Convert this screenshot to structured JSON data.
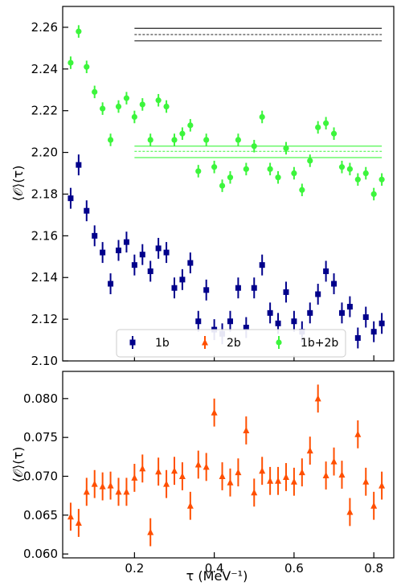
{
  "chart_data": [
    {
      "type": "scatter",
      "ylabel": "⟨𝒪⟩(τ)",
      "xlim": [
        0.02,
        0.85
      ],
      "ylim": [
        2.1,
        2.27
      ],
      "xticks": [
        0.2,
        0.4,
        0.6,
        0.8
      ],
      "yticks": [
        2.1,
        2.12,
        2.14,
        2.16,
        2.18,
        2.2,
        2.22,
        2.24,
        2.26
      ],
      "ytick_labels": [
        "2.10",
        "2.12",
        "2.14",
        "2.16",
        "2.18",
        "2.20",
        "2.22",
        "2.24",
        "2.26"
      ],
      "legend": {
        "placement": "bottom",
        "entries": [
          "1b",
          "2b",
          "1b+2b"
        ]
      },
      "series": [
        {
          "name": "1b",
          "color": "#00008b",
          "marker": "square",
          "x": [
            0.04,
            0.06,
            0.08,
            0.1,
            0.12,
            0.14,
            0.16,
            0.18,
            0.2,
            0.22,
            0.24,
            0.26,
            0.28,
            0.3,
            0.32,
            0.34,
            0.36,
            0.38,
            0.4,
            0.42,
            0.44,
            0.46,
            0.48,
            0.5,
            0.52,
            0.54,
            0.56,
            0.58,
            0.6,
            0.62,
            0.64,
            0.66,
            0.68,
            0.7,
            0.72,
            0.74,
            0.76,
            0.78,
            0.8,
            0.82
          ],
          "y": [
            2.178,
            2.194,
            2.172,
            2.16,
            2.152,
            2.137,
            2.153,
            2.157,
            2.146,
            2.151,
            2.143,
            2.154,
            2.152,
            2.135,
            2.139,
            2.147,
            2.119,
            2.134,
            2.115,
            2.113,
            2.119,
            2.135,
            2.116,
            2.135,
            2.146,
            2.123,
            2.118,
            2.133,
            2.119,
            2.114,
            2.123,
            2.132,
            2.143,
            2.137,
            2.123,
            2.126,
            2.111,
            2.121,
            2.114,
            2.118
          ],
          "err": 0.005
        },
        {
          "name": "1b+2b",
          "color": "#3cf53c",
          "marker": "circle",
          "x": [
            0.04,
            0.06,
            0.08,
            0.1,
            0.12,
            0.14,
            0.16,
            0.18,
            0.2,
            0.22,
            0.24,
            0.26,
            0.28,
            0.3,
            0.32,
            0.34,
            0.36,
            0.38,
            0.4,
            0.42,
            0.44,
            0.46,
            0.48,
            0.5,
            0.52,
            0.54,
            0.56,
            0.58,
            0.6,
            0.62,
            0.64,
            0.66,
            0.68,
            0.7,
            0.72,
            0.74,
            0.76,
            0.78,
            0.8,
            0.82
          ],
          "y": [
            2.243,
            2.258,
            2.241,
            2.229,
            2.221,
            2.206,
            2.222,
            2.226,
            2.217,
            2.223,
            2.206,
            2.225,
            2.222,
            2.206,
            2.209,
            2.213,
            2.191,
            2.206,
            2.193,
            2.184,
            2.188,
            2.206,
            2.192,
            2.203,
            2.217,
            2.192,
            2.188,
            2.202,
            2.19,
            2.182,
            2.196,
            2.212,
            2.214,
            2.209,
            2.193,
            2.192,
            2.187,
            2.19,
            2.18,
            2.187
          ],
          "err": 0.003
        }
      ],
      "bands": [
        {
          "color": "#222222",
          "x_range": [
            0.2,
            0.82
          ],
          "center": 2.2565,
          "low": 2.2535,
          "high": 2.2595
        },
        {
          "color": "#3cf53c",
          "x_range": [
            0.2,
            0.82
          ],
          "center": 2.2005,
          "low": 2.1975,
          "high": 2.203
        }
      ]
    },
    {
      "type": "scatter",
      "xlabel": "τ (MeV⁻¹)",
      "ylabel": "⟨𝒪⟩(τ)",
      "xlim": [
        0.02,
        0.85
      ],
      "ylim": [
        0.0595,
        0.0835
      ],
      "xticks": [
        0.2,
        0.4,
        0.6,
        0.8
      ],
      "xtick_labels": [
        "0.2",
        "0.4",
        "0.6",
        "0.8"
      ],
      "yticks": [
        0.06,
        0.065,
        0.07,
        0.075,
        0.08
      ],
      "ytick_labels": [
        "0.060",
        "0.065",
        "0.070",
        "0.075",
        "0.080"
      ],
      "series": [
        {
          "name": "2b",
          "color": "#ff4f00",
          "marker": "triangle",
          "x": [
            0.04,
            0.06,
            0.08,
            0.1,
            0.12,
            0.14,
            0.16,
            0.18,
            0.2,
            0.22,
            0.24,
            0.26,
            0.28,
            0.3,
            0.32,
            0.34,
            0.36,
            0.38,
            0.4,
            0.42,
            0.44,
            0.46,
            0.48,
            0.5,
            0.52,
            0.54,
            0.56,
            0.58,
            0.6,
            0.62,
            0.64,
            0.66,
            0.68,
            0.7,
            0.72,
            0.74,
            0.76,
            0.78,
            0.8,
            0.82
          ],
          "y": [
            0.0648,
            0.064,
            0.068,
            0.069,
            0.0687,
            0.0688,
            0.068,
            0.068,
            0.0698,
            0.071,
            0.0628,
            0.0706,
            0.069,
            0.0707,
            0.07,
            0.0662,
            0.0715,
            0.0712,
            0.0782,
            0.07,
            0.0692,
            0.0705,
            0.0759,
            0.0679,
            0.0707,
            0.0694,
            0.0694,
            0.0699,
            0.0693,
            0.0705,
            0.0733,
            0.08,
            0.0701,
            0.0719,
            0.0702,
            0.0654,
            0.0754,
            0.0693,
            0.0662,
            0.0688
          ],
          "err": 0.0018
        }
      ]
    }
  ]
}
